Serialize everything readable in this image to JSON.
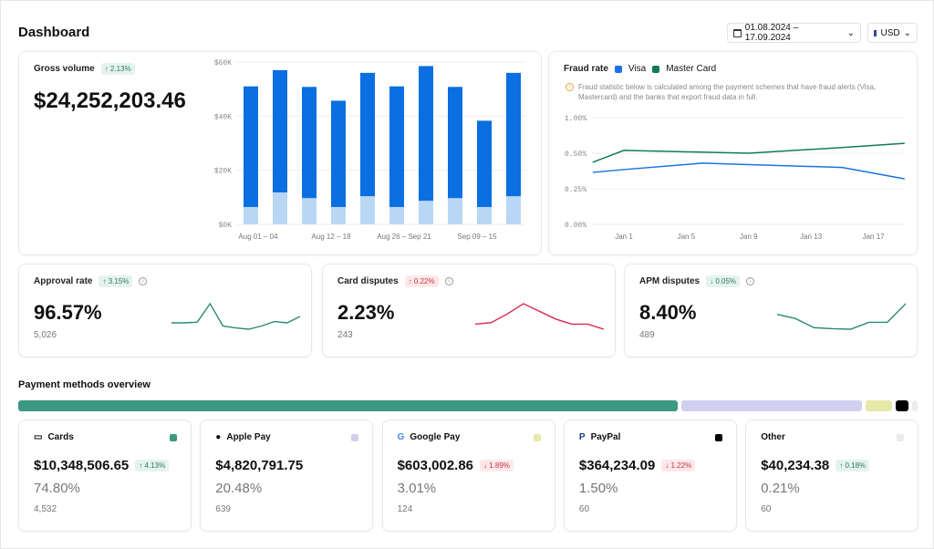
{
  "header": {
    "title": "Dashboard",
    "date_range": "01.08.2024 – 17.09.2024",
    "currency": "USD"
  },
  "gross": {
    "label": "Gross volume",
    "change": "↑ 2.13%",
    "value": "$24,252,203.46"
  },
  "chart_data": [
    {
      "type": "bar",
      "stacked": true,
      "yticks": [
        "$60K",
        "$40K",
        "$20K",
        "$0K"
      ],
      "ylim": [
        0,
        60000
      ],
      "grid": true,
      "x_labels": [
        "Aug 01 – 04",
        "Aug 12 – 18",
        "Aug 26 – Sep 21",
        "Sep 09 – 15"
      ],
      "series": [
        {
          "values": [
            6400,
            11800,
            9700,
            6400,
            10400,
            6400,
            8700,
            9700,
            6400,
            10400
          ],
          "color": "#b9d7f5"
        },
        {
          "values": [
            44600,
            45200,
            41100,
            39300,
            45600,
            44600,
            49800,
            41100,
            31900,
            45600
          ],
          "color": "#0a6fe0"
        }
      ]
    },
    {
      "type": "line",
      "title": "Fraud rate",
      "note": "Fraud statistic below is calculated among the payment schemes that have fraud alerts (Visa, Mastercard) and the banks that export fraud data in full.",
      "yticks": [
        "1.00%",
        "0.50%",
        "0.25%",
        "0.00%"
      ],
      "ytick_values": [
        1.0,
        0.5,
        0.25,
        0
      ],
      "xticks": [
        "Jan 1",
        "Jan 5",
        "Jan 9",
        "Jan 13",
        "Jan 17"
      ],
      "grid": true,
      "legend": "top-left",
      "x": [
        "Dec 30",
        "Jan 1",
        "Jan 6",
        "Jan 9",
        "Jan 15",
        "Jan 19"
      ],
      "series": [
        {
          "name": "Visa",
          "color": "#1a73e0",
          "values": [
            0.365,
            0.385,
            0.43,
            0.42,
            0.4,
            0.32
          ]
        },
        {
          "name": "Master Card",
          "color": "#137a5c",
          "x": [
            "Dec 30",
            "Jan 1",
            "Jan 5",
            "Jan 9",
            "Jan 15",
            "Jan 19"
          ],
          "values": [
            0.436,
            0.54,
            0.52,
            0.5,
            0.58,
            0.64
          ]
        }
      ]
    }
  ],
  "kpis": [
    {
      "label": "Approval rate",
      "change": "↑ 3.15%",
      "dir": "up",
      "value": "96.57%",
      "count": "5,026",
      "color": "#2a8a74",
      "spark": [
        2,
        2,
        2.1,
        5,
        1.5,
        1.2,
        1,
        1.5,
        2.2,
        2,
        3
      ]
    },
    {
      "label": "Card disputes",
      "change": "↑ 0.22%",
      "dir": "dn",
      "value": "2.23%",
      "count": "243",
      "color": "#d6284b",
      "spark": [
        2,
        2.3,
        4,
        6,
        4.5,
        3,
        2,
        2,
        1
      ]
    },
    {
      "label": "APM disputes",
      "change": "↓ 0.05%",
      "dir": "up",
      "value": "8.40%",
      "count": "489",
      "color": "#2a8a74",
      "spark": [
        4,
        3.2,
        1.5,
        1.3,
        1.2,
        2.5,
        2.5,
        6
      ]
    }
  ],
  "payments": {
    "title": "Payment methods overview",
    "share_bar": [
      {
        "name": "Cards",
        "pct": 74.8,
        "color": "#3d9882"
      },
      {
        "name": "Apple Pay",
        "pct": 20.48,
        "color": "#d0cff0"
      },
      {
        "name": "Google Pay",
        "pct": 3.01,
        "color": "#e6e9a8"
      },
      {
        "name": "PayPal",
        "pct": 1.5,
        "color": "#000000"
      },
      {
        "name": "Other",
        "pct": 0.21,
        "color": "#ececec"
      }
    ],
    "items": [
      {
        "name": "Cards",
        "icon": "card-icon",
        "amount": "$10,348,506.65",
        "change": "↑ 4.13%",
        "dir": "up",
        "pct": "74.80%",
        "count": "4,532",
        "color": "#3d9882"
      },
      {
        "name": "Apple Pay",
        "icon": "apple-icon",
        "amount": "$4,820,791.75",
        "change": "",
        "dir": "",
        "pct": "20.48%",
        "count": "639",
        "color": "#d0cff0"
      },
      {
        "name": "Google Pay",
        "icon": "google-icon",
        "amount": "$603,002.86",
        "change": "↓ 1.89%",
        "dir": "dn",
        "pct": "3.01%",
        "count": "124",
        "color": "#e6e9a8"
      },
      {
        "name": "PayPal",
        "icon": "paypal-icon",
        "amount": "$364,234.09",
        "change": "↓ 1.22%",
        "dir": "dn",
        "pct": "1.50%",
        "count": "60",
        "color": "#000000"
      },
      {
        "name": "Other",
        "icon": "",
        "amount": "$40,234.38",
        "change": "↑ 0.18%",
        "dir": "up",
        "pct": "0.21%",
        "count": "60",
        "color": "#ececec"
      }
    ]
  }
}
